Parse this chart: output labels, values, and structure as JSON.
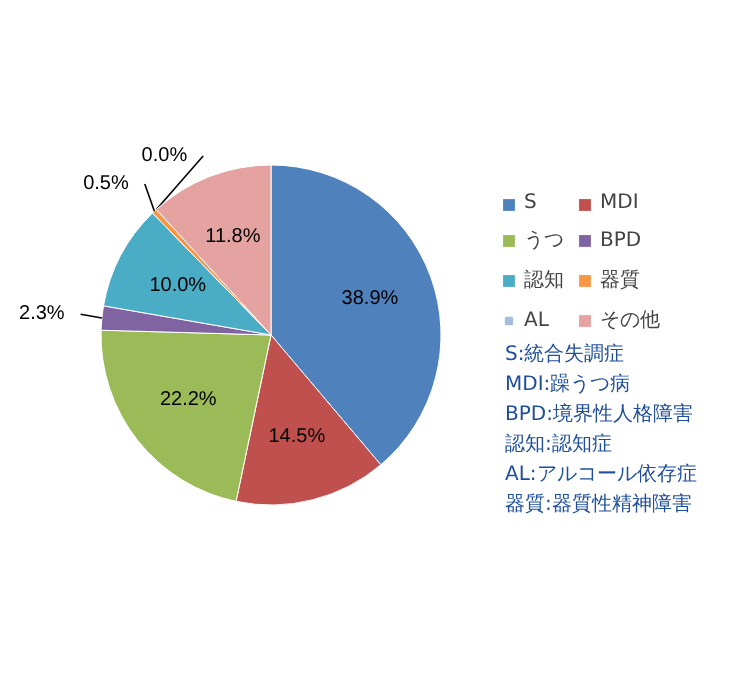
{
  "chart_data": {
    "type": "pie",
    "categories": [
      "S",
      "MDI",
      "うつ",
      "BPD",
      "認知",
      "器質",
      "AL",
      "その他"
    ],
    "values": [
      38.9,
      14.5,
      22.2,
      2.3,
      10.0,
      0.5,
      0.0,
      11.8
    ],
    "colors": [
      "#4f81bd",
      "#c0504d",
      "#9bbb59",
      "#8064a2",
      "#4bacc6",
      "#f79646",
      "#a7bde0",
      "#e4a2a0"
    ],
    "value_labels": [
      "38.9%",
      "14.5%",
      "22.2%",
      "2.3%",
      "10.0%",
      "0.5%",
      "0.0%",
      "11.8%"
    ],
    "legend": "right",
    "annotations": [
      "S:統合失調症",
      "MDI:躁うつ病",
      "BPD:境界性人格障害",
      "認知:認知症",
      "AL:アルコール依存症",
      "器質:器質性精神障害"
    ]
  }
}
